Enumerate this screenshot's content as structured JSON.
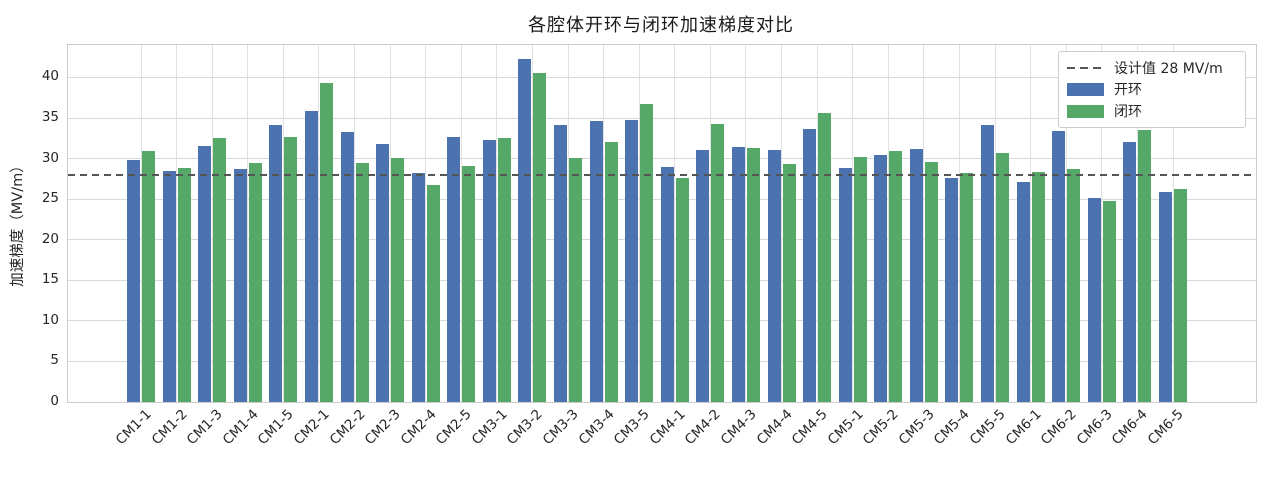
{
  "title": "各腔体开环与闭环加速梯度对比",
  "chart_data": {
    "type": "bar",
    "title": "各腔体开环与闭环加速梯度对比",
    "xlabel": "",
    "ylabel": "加速梯度（MV/m）",
    "ylim": [
      0,
      44
    ],
    "yticks": [
      0,
      5,
      10,
      15,
      20,
      25,
      30,
      35,
      40
    ],
    "grid": true,
    "legend_position": "upper right",
    "categories": [
      "CM1-1",
      "CM1-2",
      "CM1-3",
      "CM1-4",
      "CM1-5",
      "CM2-1",
      "CM2-2",
      "CM2-3",
      "CM2-4",
      "CM2-5",
      "CM3-1",
      "CM3-2",
      "CM3-3",
      "CM3-4",
      "CM3-5",
      "CM4-1",
      "CM4-2",
      "CM4-3",
      "CM4-4",
      "CM4-5",
      "CM5-1",
      "CM5-2",
      "CM5-3",
      "CM5-4",
      "CM5-5",
      "CM6-1",
      "CM6-2",
      "CM6-3",
      "CM6-4",
      "CM6-5"
    ],
    "series": [
      {
        "name": "开环",
        "color": "#4C72B0",
        "values": [
          29.8,
          28.5,
          31.5,
          28.7,
          34.1,
          35.9,
          33.3,
          31.8,
          28.2,
          32.7,
          32.3,
          42.3,
          34.1,
          34.6,
          34.8,
          29.0,
          31.0,
          31.4,
          31.1,
          33.6,
          28.9,
          30.4,
          31.2,
          27.6,
          34.1,
          27.1,
          33.4,
          25.1,
          32.1,
          25.9
        ]
      },
      {
        "name": "闭环",
        "color": "#55A868",
        "values": [
          30.9,
          28.8,
          32.5,
          29.4,
          32.6,
          39.3,
          29.4,
          30.1,
          26.7,
          29.1,
          32.5,
          40.5,
          30.1,
          32.1,
          36.7,
          27.6,
          34.3,
          31.3,
          29.3,
          35.6,
          30.2,
          30.9,
          29.6,
          28.2,
          30.7,
          28.3,
          28.7,
          24.8,
          33.5,
          26.2
        ]
      }
    ],
    "reference_line": {
      "value": 28,
      "label": "设计值 28 MV/m",
      "color": "#555555",
      "style": "dashed"
    }
  },
  "legend": {
    "items": [
      {
        "label": "设计值 28 MV/m",
        "type": "dashed-line",
        "color": "#555555"
      },
      {
        "label": "开环",
        "type": "patch",
        "color": "#4C72B0"
      },
      {
        "label": "闭环",
        "type": "patch",
        "color": "#55A868"
      }
    ]
  },
  "colors": {
    "open_loop": "#4C72B0",
    "closed_loop": "#55A868",
    "reference": "#555555",
    "grid": "#d9d9d9"
  }
}
